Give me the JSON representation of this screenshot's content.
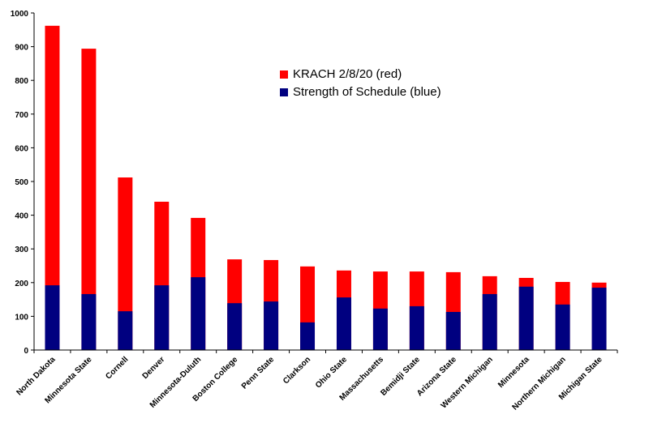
{
  "chart_data": {
    "type": "bar",
    "overlap": true,
    "categories": [
      "North Dakota",
      "Minnesota State",
      "Cornell",
      "Denver",
      "Minnesota-Duluth",
      "Boston College",
      "Penn State",
      "Clarkson",
      "Ohio State",
      "Massachusetts",
      "Bemidji State",
      "Arizona State",
      "Western Michigan",
      "Minnesota",
      "Northern Michigan",
      "Michigan State"
    ],
    "series": [
      {
        "name": "KRACH 2/8/20 (red)",
        "color": "#ff0000",
        "values": [
          962,
          894,
          512,
          440,
          392,
          269,
          267,
          248,
          236,
          233,
          233,
          231,
          219,
          214,
          202,
          200
        ]
      },
      {
        "name": "Strength of Schedule (blue)",
        "color": "#000080",
        "values": [
          192,
          166,
          115,
          192,
          216,
          139,
          144,
          82,
          156,
          123,
          130,
          113,
          166,
          188,
          135,
          185
        ]
      }
    ],
    "ylim": [
      0,
      1000
    ],
    "yticks": [
      0,
      100,
      200,
      300,
      400,
      500,
      600,
      700,
      800,
      900,
      1000
    ],
    "legend": "top-center"
  }
}
